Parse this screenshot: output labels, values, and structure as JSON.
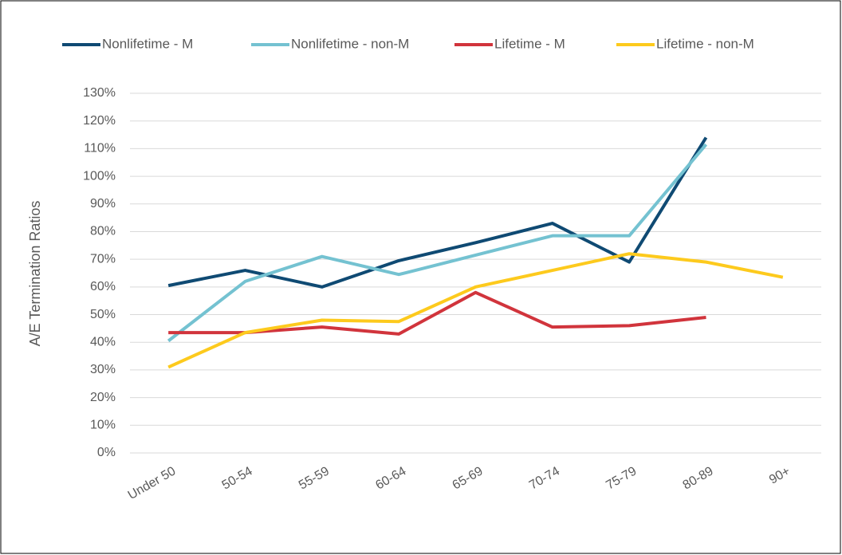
{
  "chart_data": {
    "type": "line",
    "y_label": "A/E Termination Ratios",
    "categories": [
      "Under 50",
      "50-54",
      "55-59",
      "60-64",
      "65-69",
      "70-74",
      "75-79",
      "80-89",
      "90+"
    ],
    "series": [
      {
        "name": "Nonlifetime - M",
        "color": "#0f4a73",
        "values": [
          60.5,
          66,
          60,
          69.5,
          76,
          83,
          69,
          114,
          null
        ]
      },
      {
        "name": "Nonlifetime - non-M",
        "color": "#74c2d1",
        "values": [
          40.5,
          62,
          71,
          64.5,
          71.5,
          78.5,
          78.5,
          111.5,
          null
        ]
      },
      {
        "name": "Lifetime - M",
        "color": "#d1343c",
        "values": [
          43.5,
          43.5,
          45.5,
          43,
          58,
          45.5,
          46,
          49,
          null
        ]
      },
      {
        "name": "Lifetime - non-M",
        "color": "#fdca1d",
        "values": [
          31,
          43.5,
          48,
          47.5,
          60,
          66,
          72,
          69,
          63.5
        ]
      }
    ],
    "ylim": [
      0,
      130
    ],
    "yticks": [
      {
        "value": 0,
        "label": "0%"
      },
      {
        "value": 10,
        "label": "10%"
      },
      {
        "value": 20,
        "label": "20%"
      },
      {
        "value": 30,
        "label": "30%"
      },
      {
        "value": 40,
        "label": "40%"
      },
      {
        "value": 50,
        "label": "50%"
      },
      {
        "value": 60,
        "label": "60%"
      },
      {
        "value": 70,
        "label": "70%"
      },
      {
        "value": 80,
        "label": "80%"
      },
      {
        "value": 90,
        "label": "90%"
      },
      {
        "value": 100,
        "label": "100%"
      },
      {
        "value": 110,
        "label": "110%"
      },
      {
        "value": 120,
        "label": "120%"
      },
      {
        "value": 130,
        "label": "130%"
      }
    ],
    "grid": true,
    "legend": "top"
  }
}
